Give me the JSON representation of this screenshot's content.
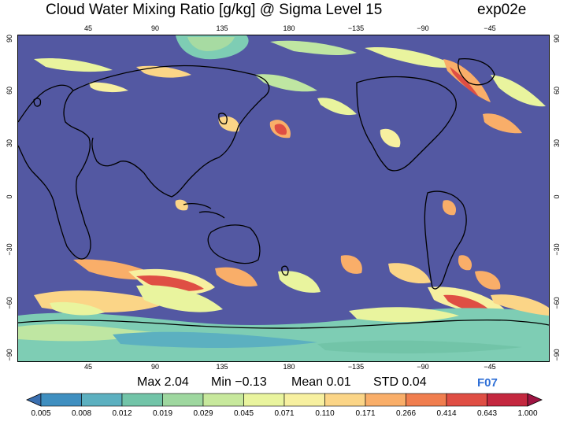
{
  "header": {
    "title": "Cloud Water Mixing Ratio [g/kg]  @ Sigma Level 15",
    "experiment": "exp02e"
  },
  "map": {
    "lon_ticks_top": [
      "45",
      "90",
      "135",
      "180",
      "−135",
      "−90",
      "−45"
    ],
    "lon_ticks_bottom": [
      "45",
      "90",
      "135",
      "180",
      "−135",
      "−90",
      "−45"
    ],
    "lat_ticks": [
      "90",
      "60",
      "30",
      "0",
      "−30",
      "−60",
      "−90"
    ],
    "colors": {
      "background": "#5358a2",
      "coast": "#000000"
    }
  },
  "stats": {
    "max": "Max 2.04",
    "min": "Min −0.13",
    "mean": "Mean 0.01",
    "std": "STD 0.04"
  },
  "tag": "F07",
  "colorbar": {
    "labels": [
      "0.005",
      "0.008",
      "0.012",
      "0.019",
      "0.029",
      "0.045",
      "0.071",
      "0.110",
      "0.171",
      "0.266",
      "0.414",
      "0.643",
      "1.000"
    ],
    "colors": [
      "#3a6fb0",
      "#3f8fc0",
      "#5cb0c0",
      "#72c4a8",
      "#9ed79f",
      "#c7e89c",
      "#e9f49e",
      "#f7f0a0",
      "#fbd587",
      "#f9ae69",
      "#f07e4f",
      "#df4e44",
      "#c4283f",
      "#9e1442"
    ]
  }
}
